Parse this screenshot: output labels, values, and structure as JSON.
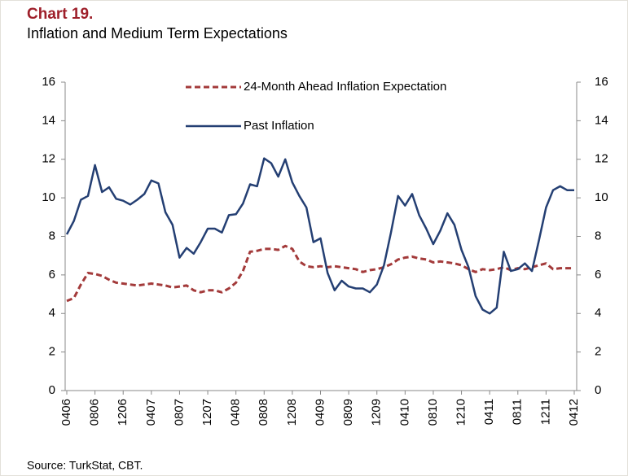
{
  "chart_data": {
    "type": "line",
    "title": "Chart 19.",
    "subtitle": "Inflation and Medium Term Expectations",
    "source": "Source: TurkStat, CBT.",
    "categories": [
      "0406",
      null,
      null,
      null,
      "0806",
      null,
      null,
      null,
      "1206",
      null,
      null,
      null,
      "0407",
      null,
      null,
      null,
      "0807",
      null,
      null,
      null,
      "1207",
      null,
      null,
      null,
      "0408",
      null,
      null,
      null,
      "0808",
      null,
      null,
      null,
      "1208",
      null,
      null,
      null,
      "0409",
      null,
      null,
      null,
      "0809",
      null,
      null,
      null,
      "1209",
      null,
      null,
      null,
      "0410",
      null,
      null,
      null,
      "0810",
      null,
      null,
      null,
      "1210",
      null,
      null,
      null,
      "0411",
      null,
      null,
      null,
      "0811",
      null,
      null,
      null,
      "1211",
      null,
      null,
      null,
      "0412"
    ],
    "series": [
      {
        "name": "24-Month Ahead Inflation Expectation",
        "color": "#a33a3a",
        "style": "dashed",
        "values": [
          4.65,
          4.8,
          5.5,
          6.1,
          6.05,
          5.95,
          5.75,
          5.6,
          5.55,
          5.5,
          5.45,
          5.5,
          5.55,
          5.5,
          5.45,
          5.35,
          5.4,
          5.45,
          5.2,
          5.1,
          5.2,
          5.2,
          5.1,
          5.3,
          5.6,
          6.2,
          7.2,
          7.25,
          7.35,
          7.35,
          7.3,
          7.5,
          7.35,
          6.7,
          6.45,
          6.4,
          6.45,
          6.4,
          6.45,
          6.4,
          6.35,
          6.3,
          6.15,
          6.25,
          6.3,
          6.4,
          6.55,
          6.8,
          6.9,
          6.95,
          6.85,
          6.8,
          6.65,
          6.7,
          6.65,
          6.6,
          6.5,
          6.3,
          6.15,
          6.3,
          6.25,
          6.3,
          6.4,
          6.25,
          6.35,
          6.3,
          6.4,
          6.5,
          6.6,
          6.3,
          6.35,
          6.35,
          6.35
        ]
      },
      {
        "name": "Past Inflation",
        "color": "#243f73",
        "style": "solid",
        "values": [
          8.1,
          8.8,
          9.9,
          10.1,
          11.7,
          10.3,
          10.55,
          9.95,
          9.85,
          9.65,
          9.9,
          10.2,
          10.9,
          10.75,
          9.25,
          8.6,
          6.9,
          7.4,
          7.1,
          7.7,
          8.4,
          8.4,
          8.2,
          9.1,
          9.15,
          9.7,
          10.7,
          10.6,
          12.05,
          11.8,
          11.1,
          12.0,
          10.8,
          10.1,
          9.5,
          7.7,
          7.9,
          6.1,
          5.2,
          5.7,
          5.4,
          5.3,
          5.3,
          5.1,
          5.5,
          6.5,
          8.2,
          10.1,
          9.6,
          10.2,
          9.1,
          8.4,
          7.6,
          8.3,
          9.2,
          8.6,
          7.3,
          6.4,
          4.9,
          4.2,
          4.0,
          4.3,
          7.2,
          6.2,
          6.3,
          6.6,
          6.2,
          7.8,
          9.5,
          10.4,
          10.6,
          10.4,
          10.4
        ]
      }
    ],
    "ylim": [
      0,
      16
    ],
    "yticks": [
      0,
      2,
      4,
      6,
      8,
      10,
      12,
      14,
      16
    ],
    "y2lim": [
      0,
      16
    ],
    "y2ticks": [
      0,
      2,
      4,
      6,
      8,
      10,
      12,
      14,
      16
    ],
    "grid": false,
    "legend": "top"
  }
}
